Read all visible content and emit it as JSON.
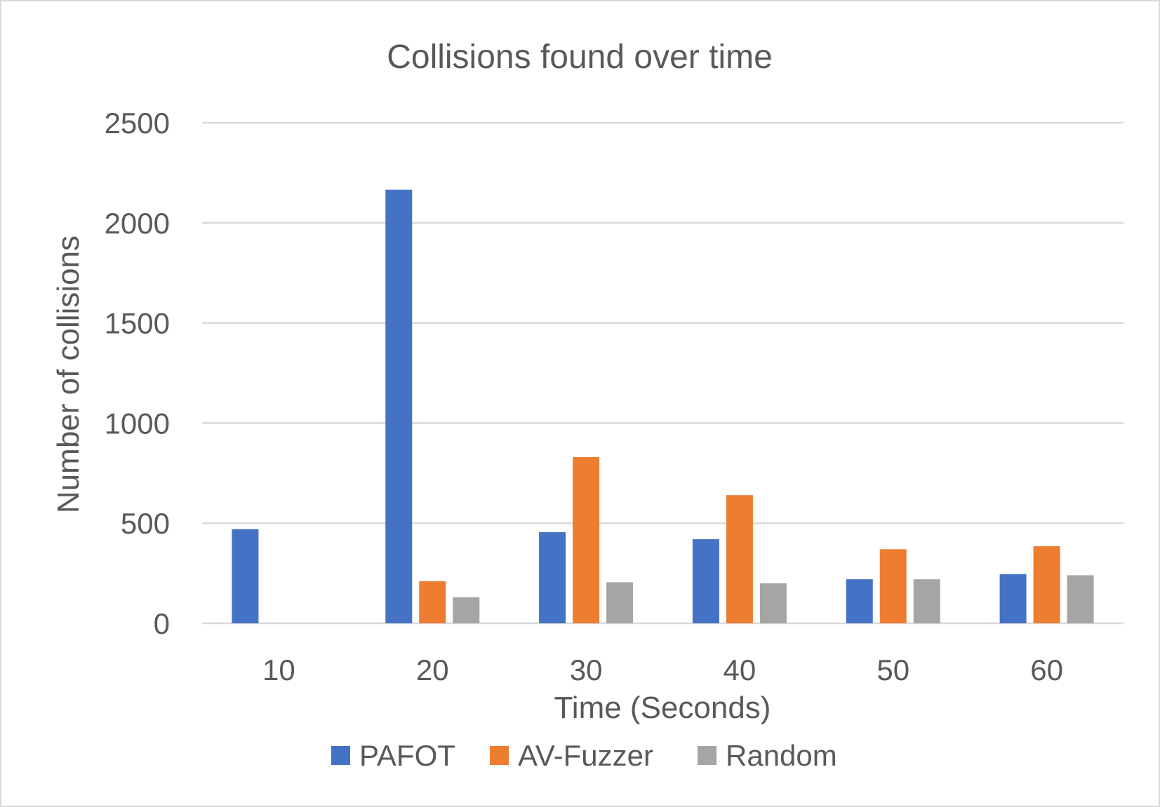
{
  "chart_data": {
    "type": "bar",
    "title": "Collisions found over time",
    "xlabel": "Time (Seconds)",
    "ylabel": "Number of collisions",
    "categories": [
      "10",
      "20",
      "30",
      "40",
      "50",
      "60"
    ],
    "ylim": [
      0,
      2500
    ],
    "yticks": [
      "0",
      "500",
      "1000",
      "1500",
      "2000",
      "2500"
    ],
    "grid": true,
    "legend_position": "bottom",
    "series": [
      {
        "name": "PAFOT",
        "color": "#4472c4",
        "values": [
          470,
          2165,
          455,
          420,
          220,
          245
        ]
      },
      {
        "name": "AV-Fuzzer",
        "color": "#ed7d31",
        "values": [
          0,
          210,
          830,
          640,
          370,
          385
        ]
      },
      {
        "name": "Random",
        "color": "#a5a5a5",
        "values": [
          0,
          130,
          205,
          200,
          220,
          240
        ]
      }
    ]
  }
}
